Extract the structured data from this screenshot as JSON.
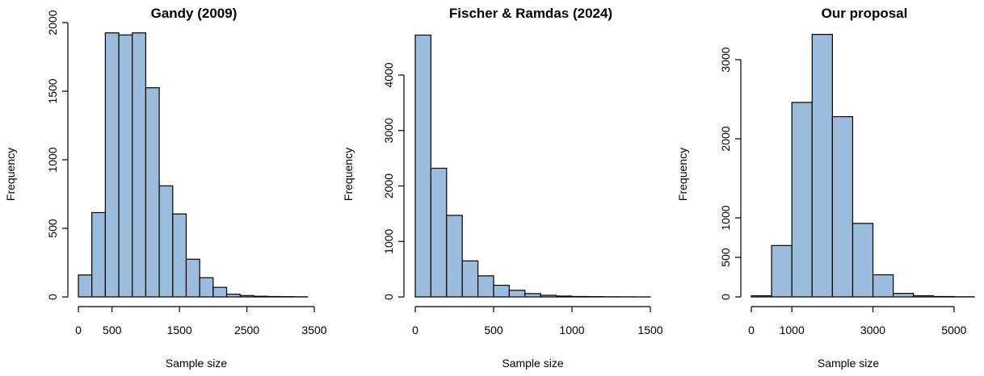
{
  "chart_data": [
    {
      "type": "bar",
      "title": "Gandy (2009)",
      "xlabel": "Sample size",
      "ylabel": "Frequency",
      "bin_edges": [
        0,
        200,
        400,
        600,
        800,
        1000,
        1200,
        1400,
        1600,
        1800,
        2000,
        2200,
        2400,
        2600,
        2800,
        3000,
        3200,
        3400
      ],
      "values": [
        160,
        615,
        1925,
        1910,
        1925,
        1525,
        810,
        605,
        275,
        140,
        70,
        20,
        10,
        5,
        3,
        2,
        1
      ],
      "xlim": [
        0,
        3500
      ],
      "ylim": [
        0,
        2000
      ],
      "xticks": [
        0,
        500,
        1500,
        2500,
        3500
      ],
      "yticks": [
        0,
        500,
        1000,
        1500,
        2000
      ]
    },
    {
      "type": "bar",
      "title": "Fischer & Ramdas (2024)",
      "xlabel": "Sample size",
      "ylabel": "Frequency",
      "bin_edges": [
        0,
        100,
        200,
        300,
        400,
        500,
        600,
        700,
        800,
        900,
        1000,
        1100,
        1200,
        1300,
        1400,
        1500
      ],
      "values": [
        4720,
        2320,
        1470,
        650,
        380,
        210,
        120,
        60,
        30,
        15,
        8,
        5,
        3,
        2,
        1
      ],
      "xlim": [
        0,
        1500
      ],
      "ylim": [
        0,
        4000
      ],
      "xticks": [
        0,
        500,
        1000,
        1500
      ],
      "yticks": [
        0,
        1000,
        2000,
        3000,
        4000
      ]
    },
    {
      "type": "bar",
      "title": "Our proposal",
      "xlabel": "Sample size",
      "ylabel": "Frequency",
      "bin_edges": [
        0,
        500,
        1000,
        1500,
        2000,
        2500,
        3000,
        3500,
        4000,
        4500,
        5000,
        5500
      ],
      "values": [
        15,
        650,
        2460,
        3320,
        2280,
        930,
        280,
        45,
        15,
        5,
        2
      ],
      "xlim": [
        0,
        5500
      ],
      "ylim": [
        0,
        3000
      ],
      "xticks": [
        0,
        1000,
        3000,
        5000
      ],
      "yticks": [
        0,
        500,
        1000,
        2000,
        3000
      ]
    }
  ]
}
